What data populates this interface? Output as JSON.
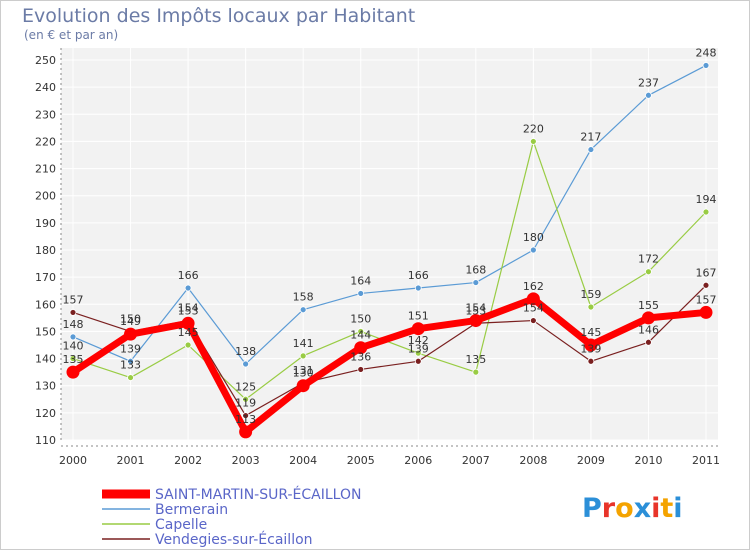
{
  "chart_data": {
    "type": "line",
    "title": "Evolution des Impôts locaux par Habitant",
    "subtitle": "(en € et par an)",
    "xlabel": "",
    "ylabel": "",
    "ylim": [
      110,
      250
    ],
    "yticks": [
      110,
      120,
      130,
      140,
      150,
      160,
      170,
      180,
      190,
      200,
      210,
      220,
      230,
      240,
      250
    ],
    "categories": [
      "2000",
      "2001",
      "2002",
      "2003",
      "2004",
      "2005",
      "2006",
      "2007",
      "2008",
      "2009",
      "2010",
      "2011"
    ],
    "legend_position": "bottom-left",
    "series": [
      {
        "name": "Bermerain",
        "color": "#5b9bd5",
        "values": [
          148,
          139,
          166,
          138,
          158,
          164,
          166,
          168,
          180,
          217,
          237,
          248
        ]
      },
      {
        "name": "Capelle",
        "color": "#99cc44",
        "values": [
          140,
          133,
          145,
          125,
          141,
          150,
          142,
          135,
          220,
          159,
          172,
          194
        ]
      },
      {
        "name": "Vendegies-sur-Écaillon",
        "color": "#7a2020",
        "values": [
          157,
          150,
          154,
          119,
          131,
          136,
          139,
          153,
          154,
          139,
          146,
          167
        ]
      },
      {
        "name": "SAINT-MARTIN-SUR-ÉCAILLON",
        "color": "#ff0000",
        "values": [
          135,
          149,
          153,
          113,
          130,
          144,
          151,
          154,
          162,
          145,
          155,
          157
        ]
      }
    ]
  },
  "logo": {
    "letters": [
      "P",
      "r",
      "o",
      "x",
      "i",
      "t",
      "i"
    ],
    "colors": [
      "#2b8fd8",
      "#e8342a",
      "#f4a300",
      "#2b8fd8",
      "#e8342a",
      "#f4a300",
      "#2b8fd8"
    ]
  }
}
